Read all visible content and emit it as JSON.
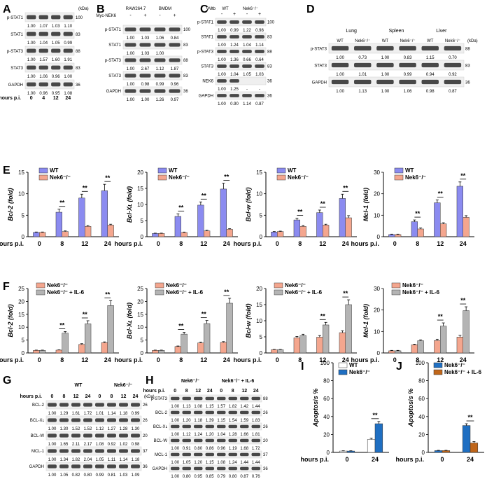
{
  "colors": {
    "wt": "#8b8bf0",
    "ko": "#f4a68e",
    "il6": "#b4b4b4",
    "wtI": "#ffffff",
    "koI": "#1f6fc2",
    "il6J": "#c0661a",
    "band": "#2a2a2a"
  },
  "panels": {
    "A": {
      "label": "A",
      "rows": [
        "p-STAT1",
        "STAT1",
        "p-STAT3",
        "STAT3",
        "GAPDH"
      ],
      "quant": [
        [
          "1.00",
          "1.07",
          "1.03",
          "1.10"
        ],
        [
          "1.00",
          "1.04",
          "1.05",
          "0.99"
        ],
        [
          "1.00",
          "1.57",
          "1.60",
          "1.91"
        ],
        [
          "1.00",
          "1.06",
          "0.96",
          "1.00"
        ],
        [
          "1.00",
          "0.96",
          "0.95",
          "1.08"
        ]
      ],
      "hours_label": "hours p.i.",
      "hours": [
        "0",
        "4",
        "12",
        "24"
      ],
      "kda": [
        "100",
        "83",
        "88",
        "83",
        "36"
      ],
      "kda_unit": "(kDa)"
    },
    "B": {
      "label": "B",
      "groups": [
        "RAW264.7",
        "BMDM"
      ],
      "treat_label": "Myc-NEK6",
      "treat": [
        "-",
        "+",
        "-",
        "+"
      ],
      "rows": [
        "p-STAT1",
        "STAT1",
        "p-STAT3",
        "STAT3",
        "GAPDH"
      ],
      "quant": [
        [
          "1.00",
          "1.03",
          "1.06",
          "0.84"
        ],
        [
          "1.00",
          "1.03",
          "1.00",
          ""
        ],
        [
          "1.00",
          "2.67",
          "1.12",
          "1.87"
        ],
        [
          "1.00",
          "0.98",
          "0.99",
          "0.96"
        ],
        [
          "1.00",
          "1.00",
          "1.26",
          "0.97"
        ]
      ],
      "kda": [
        "100",
        "83",
        "88",
        "83",
        "36"
      ]
    },
    "C": {
      "label": "C",
      "groups": [
        "WT",
        "Nek6⁻/⁻"
      ],
      "treat_label": "γMtb",
      "treat": [
        "-",
        "+",
        "-",
        "+"
      ],
      "rows": [
        "p-STAT1",
        "STAT1",
        "p-STAT3",
        "STAT3",
        "NEK6",
        "GAPDH"
      ],
      "quant": [
        [
          "1.00",
          "0.99",
          "1.22",
          "0.98"
        ],
        [
          "1.00",
          "1.24",
          "1.04",
          "1.14"
        ],
        [
          "1.00",
          "1.36",
          "0.66",
          "0.64"
        ],
        [
          "1.00",
          "1.04",
          "1.05",
          "1.03"
        ],
        [
          "1.00",
          "1.25",
          "-",
          "-"
        ],
        [
          "1.00",
          "0.90",
          "1.14",
          "0.87"
        ]
      ],
      "kda": [
        "100",
        "83",
        "88",
        "83",
        "36",
        "36"
      ]
    },
    "D": {
      "label": "D",
      "tissues": [
        "Lung",
        "Spleen",
        "Liver"
      ],
      "geno": [
        "WT",
        "Nek6⁻/⁻"
      ],
      "rows": [
        "p-STAT3",
        "STAT3",
        "GAPDH"
      ],
      "quant": [
        [
          "1.00",
          "0.73",
          "1.00",
          "0.83",
          "1.15",
          "0.70"
        ],
        [
          "1.00",
          "1.01",
          "1.00",
          "0.99",
          "0.94",
          "0.92"
        ],
        [
          "1.00",
          "1.13",
          "1.00",
          "1.06",
          "0.98",
          "0.87"
        ]
      ],
      "kda": [
        "88",
        "83",
        "36"
      ],
      "kda_unit": "(kDa)"
    },
    "G": {
      "label": "G",
      "groups": [
        "WT",
        "Nek6⁻/⁻"
      ],
      "hours_label": "hours p.i.",
      "hours": [
        "0",
        "8",
        "12",
        "24",
        "0",
        "8",
        "12",
        "24"
      ],
      "rows": [
        "BCL-2",
        "BCL-Xʟ",
        "BCL-W",
        "MCL-1",
        "GAPDH"
      ],
      "quant": [
        [
          "1.00",
          "1.29",
          "1.61",
          "1.72",
          "1.01",
          "1.14",
          "1.18",
          "0.99"
        ],
        [
          "1.00",
          "1.30",
          "1.52",
          "1.52",
          "1.12",
          "1.27",
          "1.28",
          "1.30"
        ],
        [
          "1.00",
          "1.65",
          "2.11",
          "2.17",
          "1.08",
          "0.92",
          "1.02",
          "0.98"
        ],
        [
          "1.00",
          "1.34",
          "1.82",
          "2.04",
          "1.05",
          "1.11",
          "1.14",
          "1.18"
        ],
        [
          "1.00",
          "1.05",
          "0.82",
          "0.80",
          "0.99",
          "0.81",
          "1.03",
          "1.09"
        ]
      ],
      "kda": [
        "26",
        "26",
        "20",
        "37",
        "36"
      ],
      "kda_unit": "(kDa)"
    },
    "H": {
      "label": "H",
      "groups": [
        "Nek6⁻/⁻",
        "Nek6⁻/⁻ + IL-6"
      ],
      "hours_label": "hours p.i.",
      "hours": [
        "0",
        "8",
        "12",
        "24",
        "0",
        "8",
        "12",
        "24"
      ],
      "rows": [
        "p-STAT3",
        "BCL-2",
        "BCL-Xʟ",
        "BCL-W",
        "MCL-1",
        "GAPDH"
      ],
      "quant": [
        [
          "1.00",
          "1.13",
          "1.08",
          "1.15",
          "1.57",
          "1.82",
          "1.42",
          "1.44"
        ],
        [
          "1.00",
          "1.20",
          "1.18",
          "1.39",
          "1.15",
          "1.54",
          "1.59",
          "1.83"
        ],
        [
          "1.00",
          "1.12",
          "1.24",
          "1.20",
          "1.04",
          "1.28",
          "1.66",
          "1.81"
        ],
        [
          "1.00",
          "0.91",
          "0.80",
          "0.86",
          "0.96",
          "1.19",
          "1.68",
          "1.72"
        ],
        [
          "1.00",
          "1.05",
          "1.20",
          "1.15",
          "1.08",
          "1.24",
          "1.44",
          "1.44"
        ],
        [
          "1.00",
          "0.80",
          "0.95",
          "0.85",
          "0.79",
          "0.80",
          "0.87",
          "0.76"
        ]
      ],
      "kda": [
        "88",
        "26",
        "26",
        "20",
        "37",
        "36"
      ]
    }
  },
  "chart_data": [
    {
      "panel": "E",
      "type": "bar",
      "ylabel": "Bcl-2 (fold)",
      "xlabel": "hours p.i.",
      "categories": [
        "0",
        "8",
        "12",
        "24"
      ],
      "ylim": [
        0,
        15
      ],
      "yticks": [
        0,
        5,
        10,
        15
      ],
      "series": [
        {
          "name": "WT",
          "values": [
            1,
            5.7,
            9.0,
            10.7
          ],
          "err": [
            0.1,
            0.7,
            0.9,
            1.5
          ]
        },
        {
          "name": "Nek6⁻/⁻",
          "values": [
            1,
            1.2,
            2.4,
            2.7
          ],
          "err": [
            0.1,
            0.15,
            0.2,
            0.2
          ]
        }
      ],
      "sig": [
        "",
        "**",
        "**",
        "**"
      ]
    },
    {
      "panel": "E",
      "type": "bar",
      "ylabel": "Bcl-Xʟ (fold)",
      "xlabel": "hours p.i.",
      "categories": [
        "0",
        "8",
        "12",
        "24"
      ],
      "ylim": [
        0,
        20
      ],
      "yticks": [
        0,
        5,
        10,
        15,
        20
      ],
      "series": [
        {
          "name": "WT",
          "values": [
            1,
            6.3,
            9.8,
            14.8
          ],
          "err": [
            0.1,
            0.8,
            1.0,
            1.8
          ]
        },
        {
          "name": "Nek6⁻/⁻",
          "values": [
            1,
            1.3,
            1.8,
            2.3
          ],
          "err": [
            0.1,
            0.15,
            0.2,
            0.2
          ]
        }
      ],
      "sig": [
        "",
        "**",
        "**",
        "**"
      ]
    },
    {
      "panel": "E",
      "type": "bar",
      "ylabel": "Bcl-w (fold)",
      "xlabel": "hours p.i.",
      "categories": [
        "0",
        "8",
        "12",
        "24"
      ],
      "ylim": [
        0,
        15
      ],
      "yticks": [
        0,
        5,
        10,
        15
      ],
      "series": [
        {
          "name": "WT",
          "values": [
            1.1,
            3.9,
            5.6,
            8.9
          ],
          "err": [
            0.1,
            0.4,
            0.6,
            1.0
          ]
        },
        {
          "name": "Nek6⁻/⁻",
          "values": [
            1.2,
            2.4,
            2.7,
            4.4
          ],
          "err": [
            0.1,
            0.2,
            0.2,
            0.5
          ]
        }
      ],
      "sig": [
        "",
        "**",
        "**",
        "**"
      ]
    },
    {
      "panel": "E",
      "type": "bar",
      "ylabel": "Mcl-1 (fold)",
      "xlabel": "hours p.i.",
      "categories": [
        "0",
        "8",
        "12",
        "24"
      ],
      "ylim": [
        0,
        30
      ],
      "yticks": [
        0,
        10,
        20,
        30
      ],
      "series": [
        {
          "name": "WT",
          "values": [
            1,
            7.0,
            15.8,
            23.5
          ],
          "err": [
            0.2,
            0.8,
            1.3,
            2.0
          ]
        },
        {
          "name": "Nek6⁻/⁻",
          "values": [
            1,
            3.6,
            6.0,
            9.0
          ],
          "err": [
            0.2,
            0.5,
            0.5,
            0.8
          ]
        }
      ],
      "sig": [
        "",
        "**",
        "**",
        "**"
      ]
    },
    {
      "panel": "F",
      "type": "bar",
      "ylabel": "Bcl-2 (fold)",
      "xlabel": "hours p.i.",
      "categories": [
        "0",
        "8",
        "12",
        "24"
      ],
      "ylim": [
        0,
        25
      ],
      "yticks": [
        0,
        5,
        10,
        15,
        20,
        25
      ],
      "series": [
        {
          "name": "Nek6⁻/⁻",
          "values": [
            1,
            1.1,
            3.3,
            4.0
          ],
          "err": [
            0.1,
            0.1,
            0.3,
            0.3
          ]
        },
        {
          "name": "Nek6⁻/⁻ + IL-6",
          "values": [
            1,
            7.7,
            11.3,
            18.4
          ],
          "err": [
            0.1,
            0.6,
            1.2,
            1.9
          ]
        }
      ],
      "sig": [
        "",
        "**",
        "**",
        "**"
      ]
    },
    {
      "panel": "F",
      "type": "bar",
      "ylabel": "Bcl-Xʟ (fold)",
      "xlabel": "hours p.i.",
      "categories": [
        "0",
        "8",
        "12",
        "24"
      ],
      "ylim": [
        0,
        25
      ],
      "yticks": [
        0,
        5,
        10,
        15,
        20,
        25
      ],
      "series": [
        {
          "name": "Nek6⁻/⁻",
          "values": [
            1,
            2.5,
            3.9,
            4.1
          ],
          "err": [
            0.1,
            0.2,
            0.3,
            0.3
          ]
        },
        {
          "name": "Nek6⁻/⁻ + IL-6",
          "values": [
            1,
            7.3,
            11.4,
            19.3
          ],
          "err": [
            0.1,
            0.7,
            1.2,
            1.9
          ]
        }
      ],
      "sig": [
        "",
        "**",
        "**",
        "**"
      ]
    },
    {
      "panel": "F",
      "type": "bar",
      "ylabel": "Bcl-w (fold)",
      "xlabel": "hours p.i.",
      "categories": [
        "0",
        "8",
        "12",
        "24"
      ],
      "ylim": [
        0,
        20
      ],
      "yticks": [
        0,
        5,
        10,
        15,
        20
      ],
      "series": [
        {
          "name": "Nek6⁻/⁻",
          "values": [
            1,
            4.7,
            4.9,
            6.3
          ],
          "err": [
            0.1,
            0.4,
            0.5,
            0.6
          ]
        },
        {
          "name": "Nek6⁻/⁻ + IL-6",
          "values": [
            1,
            5.4,
            8.7,
            15.0
          ],
          "err": [
            0.1,
            0.4,
            0.8,
            1.5
          ]
        }
      ],
      "sig": [
        "",
        "",
        "**",
        "**"
      ]
    },
    {
      "panel": "F",
      "type": "bar",
      "ylabel": "Mcl-1 (fold)",
      "xlabel": "hours p.i.",
      "categories": [
        "0",
        "8",
        "12",
        "24"
      ],
      "ylim": [
        0,
        30
      ],
      "yticks": [
        0,
        10,
        20,
        30
      ],
      "series": [
        {
          "name": "Nek6⁻/⁻",
          "values": [
            1,
            3.8,
            5.8,
            7.4
          ],
          "err": [
            0.2,
            0.3,
            0.6,
            0.8
          ]
        },
        {
          "name": "Nek6⁻/⁻ + IL-6",
          "values": [
            1,
            5.7,
            12.5,
            19.7
          ],
          "err": [
            0.2,
            0.4,
            1.5,
            1.8
          ]
        }
      ],
      "sig": [
        "",
        "",
        "**",
        "**"
      ]
    },
    {
      "panel": "I",
      "type": "bar",
      "ylabel": "Apoptosis %",
      "xlabel": "hours p.i.",
      "categories": [
        "0",
        "24"
      ],
      "ylim": [
        0,
        100
      ],
      "yticks": [
        0,
        20,
        40,
        60,
        80,
        100
      ],
      "series": [
        {
          "name": "WT",
          "values": [
            1.5,
            14.5
          ],
          "err": [
            0.3,
            1.2
          ]
        },
        {
          "name": "Nek6⁻/⁻",
          "values": [
            1.5,
            32
          ],
          "err": [
            0.3,
            2.5
          ]
        }
      ],
      "sig": [
        "",
        "**"
      ]
    },
    {
      "panel": "J",
      "type": "bar",
      "ylabel": "Apoptosis %",
      "xlabel": "hours p.i.",
      "categories": [
        "0",
        "24"
      ],
      "ylim": [
        0,
        100
      ],
      "yticks": [
        0,
        20,
        40,
        60,
        80,
        100
      ],
      "series": [
        {
          "name": "Nek6⁻/⁻",
          "values": [
            2,
            30
          ],
          "err": [
            0.3,
            2.0
          ]
        },
        {
          "name": "Nek6⁻/⁻ + IL-6",
          "values": [
            2,
            10.5
          ],
          "err": [
            0.3,
            1.5
          ]
        }
      ],
      "sig": [
        "",
        "**"
      ]
    }
  ],
  "panel_labels": {
    "E": "E",
    "F": "F",
    "I": "I",
    "J": "J"
  }
}
